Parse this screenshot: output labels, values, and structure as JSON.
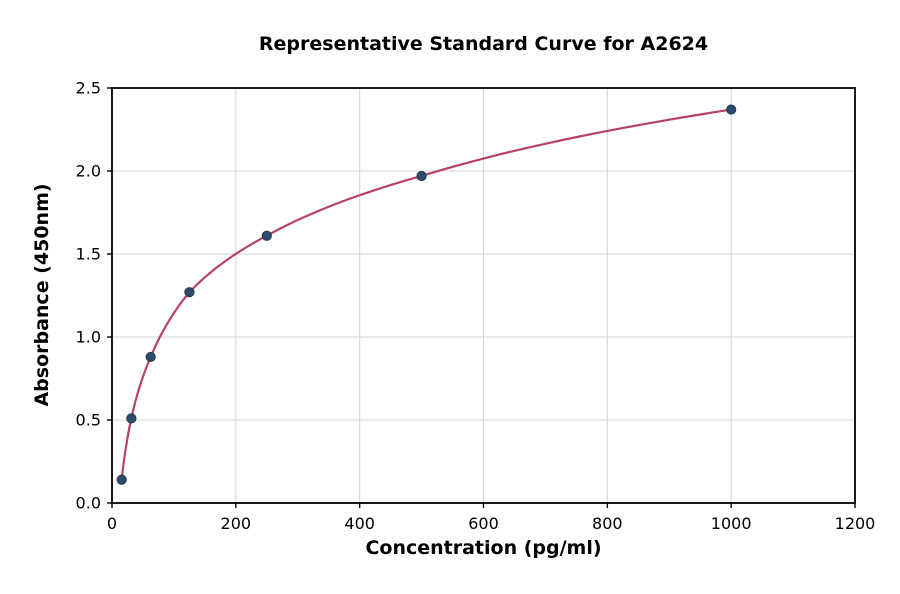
{
  "chart_data": {
    "type": "scatter",
    "title": "Representative Standard Curve for A2624",
    "xlabel": "Concentration (pg/ml)",
    "ylabel": "Absorbance (450nm)",
    "xlim": [
      0,
      1200
    ],
    "ylim": [
      0,
      2.5
    ],
    "x_ticks": [
      0,
      200,
      400,
      600,
      800,
      1000,
      1200
    ],
    "x_tick_labels": [
      "0",
      "200",
      "400",
      "600",
      "800",
      "1000",
      "1200"
    ],
    "y_ticks": [
      0,
      0.5,
      1.0,
      1.5,
      2.0,
      2.5
    ],
    "y_tick_labels": [
      "0.0",
      "0.5",
      "1.0",
      "1.5",
      "2.0",
      "2.5"
    ],
    "grid": true,
    "legend": false,
    "points": [
      {
        "x": 15.6,
        "y": 0.14
      },
      {
        "x": 31.25,
        "y": 0.51
      },
      {
        "x": 62.5,
        "y": 0.88
      },
      {
        "x": 125,
        "y": 1.27
      },
      {
        "x": 250,
        "y": 1.61
      },
      {
        "x": 500,
        "y": 1.97
      },
      {
        "x": 1000,
        "y": 2.37
      }
    ],
    "curve_style": "smooth logarithmic fit through data points",
    "colors": {
      "curve": "#b8416a",
      "marker": "#2e4b6e",
      "marker_edge": "#22364d",
      "grid": "#d3d3d3",
      "axis": "#000000",
      "text": "#000000",
      "background": "#ffffff"
    }
  }
}
